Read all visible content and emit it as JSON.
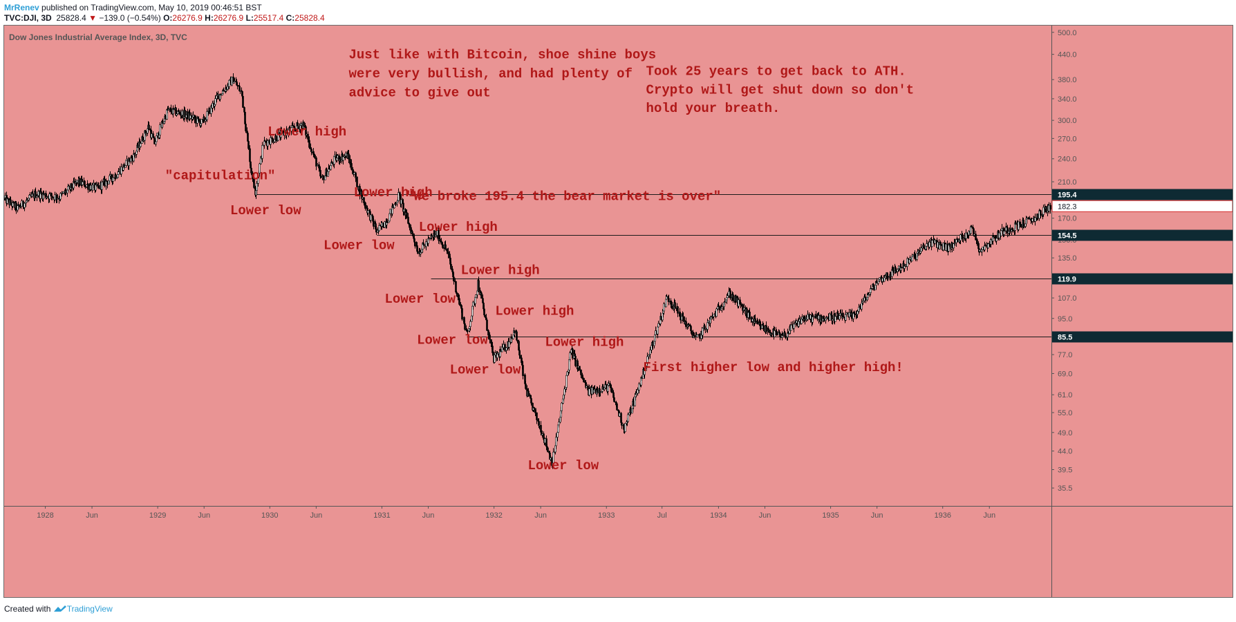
{
  "header": {
    "author": "MrRenev",
    "published_text": "published on TradingView.com, May 10, 2019 00:46:51 BST",
    "symbol": "TVC:DJI, 3D",
    "last_price": "25828.4",
    "change_arrow": "▼",
    "change": "−139.0 (−0.54%)",
    "o_label": "O:",
    "o_value": "26276.9",
    "h_label": "H:",
    "h_value": "26276.9",
    "l_label": "L:",
    "l_value": "25517.4",
    "c_label": "C:",
    "c_value": "25828.4"
  },
  "footer": {
    "created_with": "Created with",
    "brand": "TradingView"
  },
  "colors": {
    "background": "#e99494",
    "candle": "#000000",
    "annotation": "#b01818",
    "price_label_bg": "#0e2a33",
    "accent": "#2e9fd6"
  },
  "chart_data": {
    "type": "candlestick",
    "title": "Dow Jones Industrial Average Index, 3D, TVC",
    "y_scale": "log",
    "ylim": [
      32.0,
      520.0
    ],
    "x_range": [
      "1927-08-20",
      "1936-12-20"
    ],
    "y_ticks": [
      "500.0",
      "440.0",
      "380.0",
      "340.0",
      "300.0",
      "270.0",
      "240.0",
      "210.0",
      "170.0",
      "150.0",
      "135.0",
      "107.0",
      "95.0",
      "77.0",
      "69.0",
      "61.0",
      "55.0",
      "49.0",
      "44.0",
      "39.5",
      "35.5"
    ],
    "x_ticks": [
      {
        "label": "1928",
        "date": "1928-01-01"
      },
      {
        "label": "Jun",
        "date": "1928-06-01"
      },
      {
        "label": "1929",
        "date": "1929-01-01"
      },
      {
        "label": "Jun",
        "date": "1929-06-01"
      },
      {
        "label": "1930",
        "date": "1930-01-01"
      },
      {
        "label": "Jun",
        "date": "1930-06-01"
      },
      {
        "label": "1931",
        "date": "1931-01-01"
      },
      {
        "label": "Jun",
        "date": "1931-06-01"
      },
      {
        "label": "1932",
        "date": "1932-01-01"
      },
      {
        "label": "Jun",
        "date": "1932-06-01"
      },
      {
        "label": "1933",
        "date": "1933-01-01"
      },
      {
        "label": "Jul",
        "date": "1933-07-01"
      },
      {
        "label": "1934",
        "date": "1934-01-01"
      },
      {
        "label": "Jun",
        "date": "1934-06-01"
      },
      {
        "label": "1935",
        "date": "1935-01-01"
      },
      {
        "label": "Jun",
        "date": "1935-06-01"
      },
      {
        "label": "1936",
        "date": "1936-01-01"
      },
      {
        "label": "Jun",
        "date": "1936-06-01"
      }
    ],
    "price_path": [
      [
        "1927-08-20",
        190
      ],
      [
        "1927-10-01",
        180
      ],
      [
        "1927-12-01",
        196
      ],
      [
        "1928-02-15",
        192
      ],
      [
        "1928-04-15",
        210
      ],
      [
        "1928-06-15",
        202
      ],
      [
        "1928-08-15",
        218
      ],
      [
        "1928-10-15",
        245
      ],
      [
        "1928-12-01",
        290
      ],
      [
        "1928-12-20",
        262
      ],
      [
        "1929-02-01",
        318
      ],
      [
        "1929-04-01",
        310
      ],
      [
        "1929-05-25",
        295
      ],
      [
        "1929-07-15",
        345
      ],
      [
        "1929-09-03",
        381
      ],
      [
        "1929-10-01",
        350
      ],
      [
        "1929-10-29",
        230
      ],
      [
        "1929-11-13",
        198
      ],
      [
        "1929-12-10",
        262
      ],
      [
        "1930-02-01",
        275
      ],
      [
        "1930-04-17",
        294
      ],
      [
        "1930-06-18",
        212
      ],
      [
        "1930-08-01",
        240
      ],
      [
        "1930-09-10",
        245
      ],
      [
        "1930-11-01",
        188
      ],
      [
        "1930-12-16",
        157
      ],
      [
        "1931-01-20",
        170
      ],
      [
        "1931-02-24",
        194
      ],
      [
        "1931-04-29",
        140
      ],
      [
        "1931-06-27",
        156
      ],
      [
        "1931-08-01",
        140
      ],
      [
        "1931-10-05",
        86
      ],
      [
        "1931-11-09",
        117
      ],
      [
        "1931-12-30",
        75
      ],
      [
        "1932-02-15",
        82
      ],
      [
        "1932-03-08",
        89
      ],
      [
        "1932-04-15",
        62
      ],
      [
        "1932-06-01",
        50
      ],
      [
        "1932-07-08",
        41
      ],
      [
        "1932-09-07",
        79
      ],
      [
        "1932-11-01",
        62
      ],
      [
        "1933-01-10",
        64
      ],
      [
        "1933-02-27",
        50
      ],
      [
        "1933-04-10",
        62
      ],
      [
        "1933-07-18",
        108
      ],
      [
        "1933-10-21",
        84
      ],
      [
        "1934-02-05",
        110
      ],
      [
        "1934-05-01",
        92
      ],
      [
        "1934-07-26",
        85
      ],
      [
        "1934-10-01",
        95
      ],
      [
        "1935-03-14",
        96
      ],
      [
        "1935-06-01",
        118
      ],
      [
        "1935-09-01",
        130
      ],
      [
        "1935-11-20",
        148
      ],
      [
        "1936-01-20",
        143
      ],
      [
        "1936-04-06",
        160
      ],
      [
        "1936-04-30",
        141
      ],
      [
        "1936-07-15",
        158
      ],
      [
        "1936-10-15",
        168
      ],
      [
        "1936-12-15",
        182
      ]
    ],
    "horizontal_lines": [
      {
        "value": 195.4,
        "label": "195.4",
        "start": "1929-11-13"
      },
      {
        "value": 154.5,
        "label": "154.5",
        "start": "1930-12-16"
      },
      {
        "value": 119.9,
        "label": "119.9",
        "start": "1931-06-10"
      },
      {
        "value": 85.5,
        "label": "85.5",
        "start": "1931-10-05"
      }
    ],
    "current_price_label": {
      "value": 182.3,
      "label": "182.3"
    },
    "annotations": [
      {
        "text": "Just like with Bitcoin, shoe shine boys",
        "date": "1930-09-15",
        "value": 430
      },
      {
        "text": "were very bullish, and had plenty of",
        "date": "1930-09-15",
        "value": 385
      },
      {
        "text": "advice to give out",
        "date": "1930-09-15",
        "value": 345
      },
      {
        "text": "Took 25 years to get back to ATH.",
        "date": "1933-05-10",
        "value": 390
      },
      {
        "text": "Crypto will get shut down so don't",
        "date": "1933-05-10",
        "value": 350
      },
      {
        "text": "hold your breath.",
        "date": "1933-05-10",
        "value": 315
      },
      {
        "text": "Lower high",
        "date": "1929-12-25",
        "value": 275
      },
      {
        "text": "\"capitulation\"",
        "date": "1929-01-25",
        "value": 213
      },
      {
        "text": "Lower high",
        "date": "1930-10-01",
        "value": 193
      },
      {
        "text": "\"We broke 195.4 the bear market is over\"",
        "date": "1931-03-20",
        "value": 189
      },
      {
        "text": "Lower low",
        "date": "1929-08-25",
        "value": 174
      },
      {
        "text": "Lower high",
        "date": "1931-05-01",
        "value": 158
      },
      {
        "text": "Lower low",
        "date": "1930-06-25",
        "value": 142
      },
      {
        "text": "Lower high",
        "date": "1931-09-15",
        "value": 123
      },
      {
        "text": "Lower low",
        "date": "1931-01-10",
        "value": 104
      },
      {
        "text": "Lower high",
        "date": "1932-01-05",
        "value": 97
      },
      {
        "text": "Lower low",
        "date": "1931-04-25",
        "value": 82
      },
      {
        "text": "Lower high",
        "date": "1932-06-15",
        "value": 81
      },
      {
        "text": "First higher low and higher high!",
        "date": "1933-05-01",
        "value": 70
      },
      {
        "text": "Lower low",
        "date": "1931-08-10",
        "value": 69
      },
      {
        "text": "Lower low",
        "date": "1932-04-20",
        "value": 39.6
      }
    ]
  }
}
